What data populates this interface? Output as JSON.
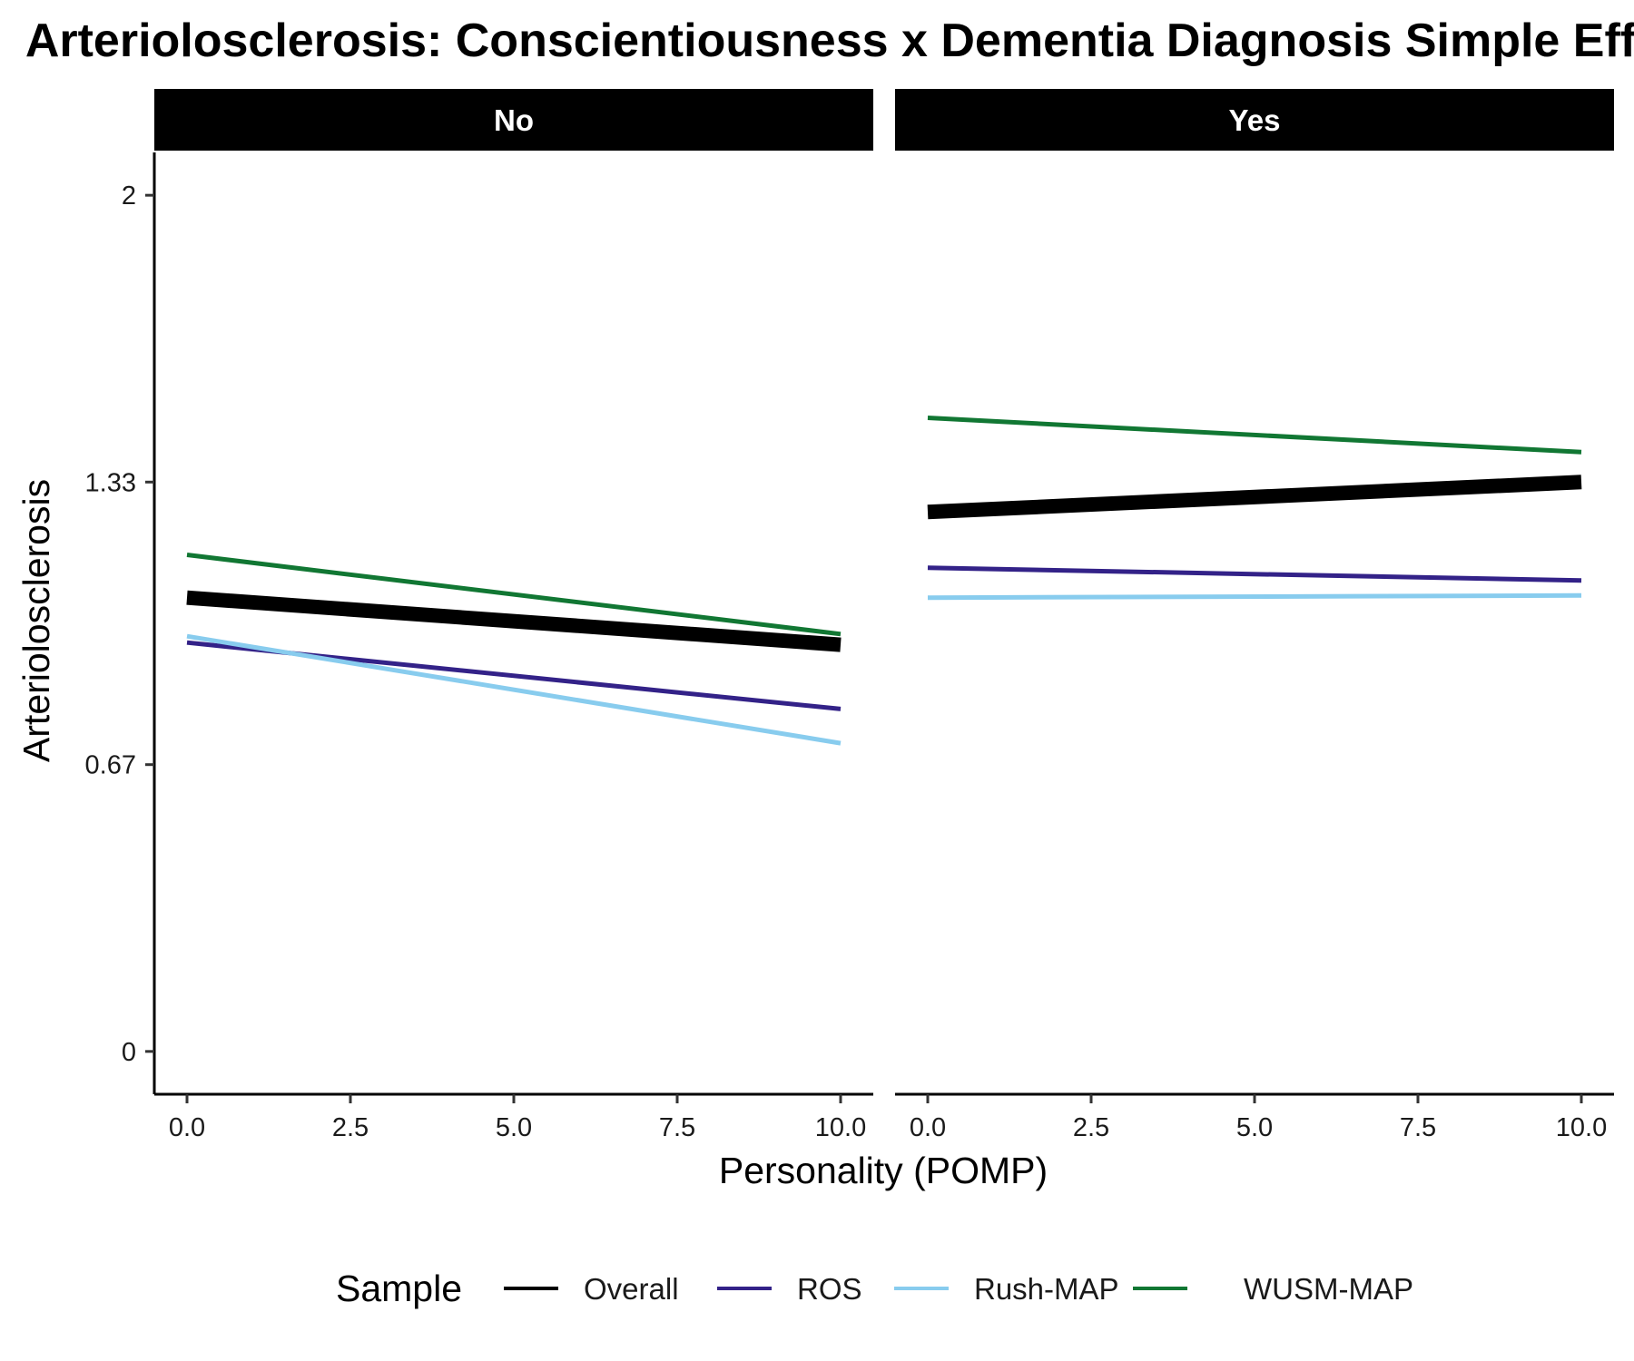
{
  "chart_data": {
    "type": "line",
    "title": "Arteriolosclerosis: Conscientiousness x Dementia Diagnosis Simple Effects",
    "xlabel": "Personality (POMP)",
    "ylabel": "Arteriolosclerosis",
    "xlim": [
      -0.5,
      10.5
    ],
    "ylim": [
      -0.1,
      2.1
    ],
    "x_ticks": [
      0,
      2.5,
      5,
      7.5,
      10
    ],
    "x_tick_labels": [
      "0.0",
      "2.5",
      "5.0",
      "7.5",
      "10.0"
    ],
    "y_ticks": [
      0,
      0.67,
      1.33,
      2
    ],
    "y_tick_labels": [
      "0",
      "0.67",
      "1.33",
      "2"
    ],
    "facets": [
      {
        "label": "No",
        "series": [
          {
            "name": "Overall",
            "x": [
              0,
              10
            ],
            "y": [
              1.06,
              0.95
            ]
          },
          {
            "name": "ROS",
            "x": [
              0,
              10
            ],
            "y": [
              0.955,
              0.8
            ]
          },
          {
            "name": "Rush-MAP",
            "x": [
              0,
              10
            ],
            "y": [
              0.97,
              0.72
            ]
          },
          {
            "name": "WUSM-MAP",
            "x": [
              0,
              10
            ],
            "y": [
              1.16,
              0.975
            ]
          }
        ]
      },
      {
        "label": "Yes",
        "series": [
          {
            "name": "Overall",
            "x": [
              0,
              10
            ],
            "y": [
              1.26,
              1.33
            ]
          },
          {
            "name": "ROS",
            "x": [
              0,
              10
            ],
            "y": [
              1.13,
              1.1
            ]
          },
          {
            "name": "Rush-MAP",
            "x": [
              0,
              10
            ],
            "y": [
              1.06,
              1.065
            ]
          },
          {
            "name": "WUSM-MAP",
            "x": [
              0,
              10
            ],
            "y": [
              1.48,
              1.4
            ]
          }
        ]
      }
    ],
    "legend": {
      "title": "Sample",
      "position": "bottom",
      "items": [
        {
          "name": "Overall",
          "color": "#000000"
        },
        {
          "name": "ROS",
          "color": "#332288"
        },
        {
          "name": "Rush-MAP",
          "color": "#88ccee"
        },
        {
          "name": "WUSM-MAP",
          "color": "#117733"
        }
      ]
    },
    "grid": false
  }
}
